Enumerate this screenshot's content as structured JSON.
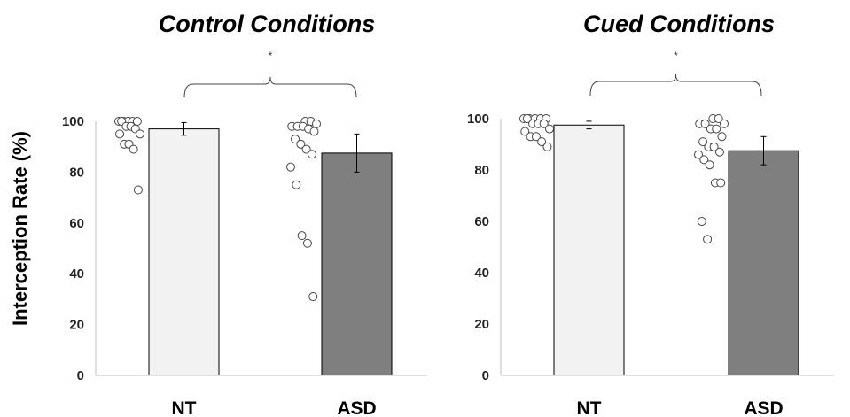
{
  "chart_data": [
    {
      "type": "bar",
      "title": "Control Conditions",
      "ylabel": "Interception Rate (%)",
      "ylim": [
        0,
        100
      ],
      "yticks": [
        0,
        20,
        40,
        60,
        80,
        100
      ],
      "categories": [
        "NT",
        "ASD"
      ],
      "values": [
        97,
        87.5
      ],
      "error": [
        2.5,
        7.5
      ],
      "bar_colors": [
        "#f2f2f2",
        "#7f7f7f"
      ],
      "points": [
        [
          100,
          100,
          100,
          100,
          100,
          100,
          98,
          98,
          97,
          95,
          95,
          91,
          91,
          89,
          73
        ],
        [
          100,
          100,
          99,
          98,
          98,
          98,
          97,
          96,
          93,
          91,
          89,
          87,
          82,
          75,
          55,
          52,
          31
        ]
      ],
      "significance": "*"
    },
    {
      "type": "bar",
      "title": "Cued Conditions",
      "ylabel": "",
      "ylim": [
        0,
        100
      ],
      "yticks": [
        0,
        20,
        40,
        60,
        80,
        100
      ],
      "categories": [
        "NT",
        "ASD"
      ],
      "values": [
        97.5,
        87.5
      ],
      "error": [
        1.5,
        5.5
      ],
      "bar_colors": [
        "#f2f2f2",
        "#7f7f7f"
      ],
      "points": [
        [
          100,
          100,
          100,
          100,
          100,
          100,
          98,
          98,
          98,
          96,
          95,
          93,
          93,
          91,
          89
        ],
        [
          100,
          100,
          98,
          98,
          98,
          96,
          96,
          93,
          91,
          89,
          89,
          87,
          86,
          84,
          82,
          75,
          75,
          60,
          53
        ]
      ],
      "significance": "*"
    }
  ]
}
